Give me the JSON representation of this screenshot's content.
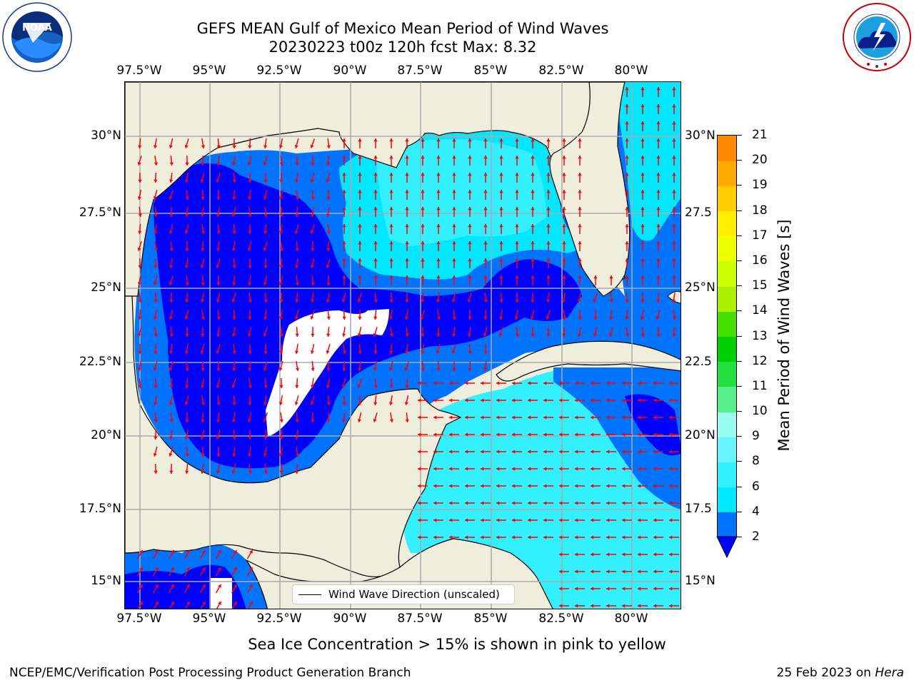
{
  "title": {
    "line1": "GEFS MEAN Gulf of Mexico Mean Period of Wind Waves",
    "line2": "20230223 t00z 120h fcst   Max: 8.32"
  },
  "logos": {
    "left": {
      "name": "noaa-logo",
      "text": "NOAA",
      "ring_text": "NATIONAL OCEANIC AND ATMOSPHERIC ADMINISTRATION · U.S. DEPARTMENT OF COMMERCE"
    },
    "right": {
      "name": "nws-logo",
      "ring_text": "NATIONAL WEATHER SERVICE"
    }
  },
  "axes": {
    "lon_ticks": [
      "97.5°W",
      "95°W",
      "92.5°W",
      "90°W",
      "87.5°W",
      "85°W",
      "82.5°W",
      "80°W"
    ],
    "lat_ticks_left": [
      "30°N",
      "27.5°N",
      "25°N",
      "22.5°N",
      "20°N",
      "17.5°N",
      "15°N"
    ],
    "lat_ticks_right": [
      "30°N",
      "27.5",
      "25°N",
      "22.5",
      "20°N",
      "17.5",
      "15°N"
    ]
  },
  "legend": {
    "label": "Wind Wave Direction (unscaled)"
  },
  "colorbar": {
    "label": "Mean Period of Wind Waves [s]",
    "ticks": [
      "2",
      "4",
      "6",
      "8",
      "9",
      "10",
      "11",
      "12",
      "13",
      "14",
      "15",
      "16",
      "17",
      "18",
      "19",
      "20",
      "21"
    ],
    "bin_colors": [
      "#0073ff",
      "#00e8ff",
      "#33f0ff",
      "#66f5ff",
      "#99faf0",
      "#55f08c",
      "#22e040",
      "#00d000",
      "#44e000",
      "#aaf000",
      "#ccff00",
      "#eeff00",
      "#ffee00",
      "#ffcc00",
      "#ffaa00",
      "#ff8800",
      "#ff5500",
      "#ff2200",
      "#ff0000"
    ],
    "extend_color": "#0000ff"
  },
  "map_colors": {
    "land": "#efeddc",
    "deep": "#0000ff",
    "mid": "#0073ff",
    "light": "#00e8ff",
    "pale": "#33f0ff",
    "arrow": "#ff0000",
    "grid": "#aaaaaa"
  },
  "ice_note": "Sea Ice Concentration > 15% is shown in pink to yellow",
  "footer": {
    "left": "NCEP/EMC/Verification Post Processing Product Generation Branch",
    "right_date": "25 Feb 2023 on ",
    "right_host": "Hera"
  }
}
